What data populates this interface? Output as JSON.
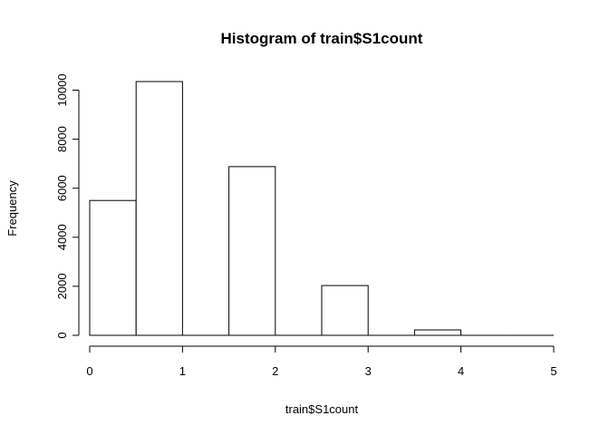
{
  "chart_data": {
    "type": "bar",
    "title": "Histogram of train$S1count",
    "xlabel": "train$S1count",
    "ylabel": "Frequency",
    "bins": [
      {
        "start": 0.0,
        "end": 0.5,
        "value": 5500
      },
      {
        "start": 0.5,
        "end": 1.0,
        "value": 10350
      },
      {
        "start": 1.0,
        "end": 1.5,
        "value": 0
      },
      {
        "start": 1.5,
        "end": 2.0,
        "value": 6880
      },
      {
        "start": 2.0,
        "end": 2.5,
        "value": 0
      },
      {
        "start": 2.5,
        "end": 3.0,
        "value": 2030
      },
      {
        "start": 3.0,
        "end": 3.5,
        "value": 0
      },
      {
        "start": 3.5,
        "end": 4.0,
        "value": 220
      },
      {
        "start": 4.0,
        "end": 4.5,
        "value": 0
      },
      {
        "start": 4.5,
        "end": 5.0,
        "value": 0
      }
    ],
    "x_ticks": [
      0,
      1,
      2,
      3,
      4,
      5
    ],
    "y_ticks": [
      0,
      2000,
      4000,
      6000,
      8000,
      10000
    ],
    "xlim": [
      0,
      5
    ],
    "ylim": [
      0,
      10350
    ],
    "grid": false,
    "colors": {
      "bar_fill": "#ffffff",
      "bar_stroke": "#000000"
    }
  }
}
